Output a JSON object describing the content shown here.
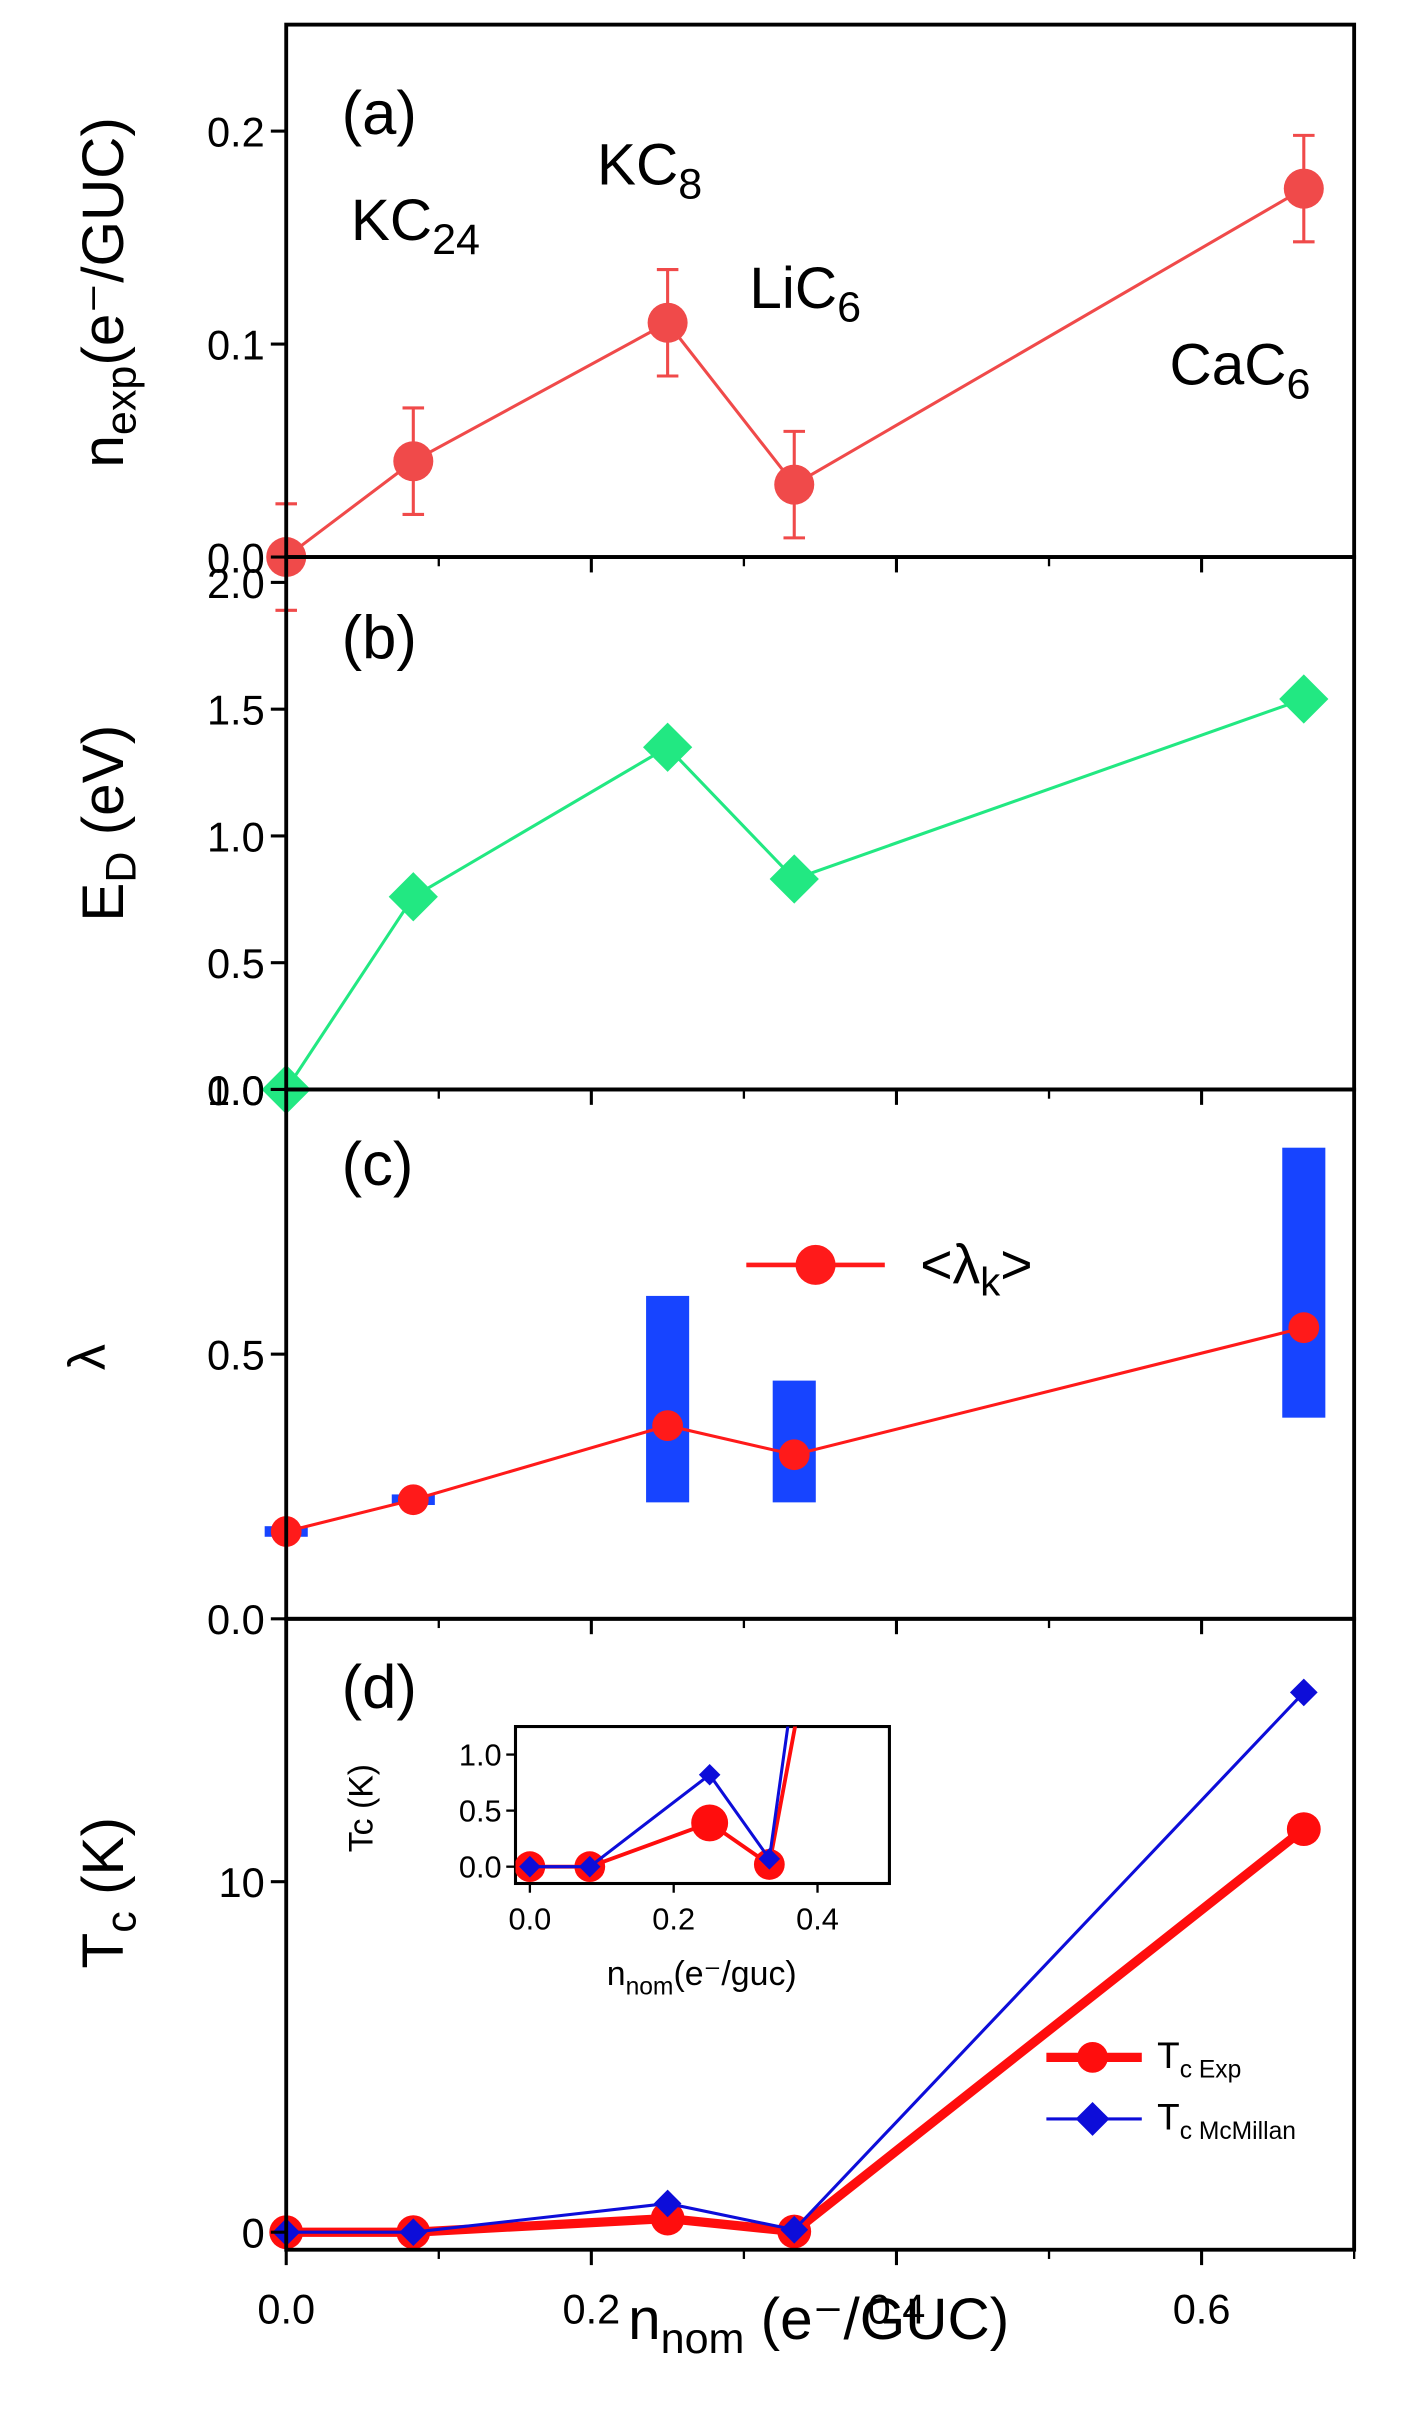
{
  "figure": {
    "x_axis_label": "n",
    "x_axis_label_sub": "nom",
    "x_axis_label_rest": " (e⁻/GUC)"
  },
  "chart_data": [
    {
      "id": "a",
      "type": "scatter",
      "panel_label": "(a)",
      "ylabel": "n",
      "ylabel_sub": "exp",
      "ylabel_rest": "(e⁻/GUC)",
      "xlim": [
        0,
        0.7
      ],
      "ylim": [
        0,
        0.25
      ],
      "yticks": [
        0.0,
        0.1,
        0.2
      ],
      "ytick_labels": [
        "0.0",
        "0.1",
        "0.2"
      ],
      "series": [
        {
          "name": "n_exp",
          "color": "#f04a4a",
          "marker": "circle",
          "x": [
            0.0,
            0.0833,
            0.25,
            0.333,
            0.667
          ],
          "y": [
            0.0,
            0.045,
            0.11,
            0.034,
            0.173
          ],
          "err": [
            0.025,
            0.025,
            0.025,
            0.025,
            0.025
          ]
        }
      ],
      "annotations": [
        {
          "base": "KC",
          "sub": "24"
        },
        {
          "base": "KC",
          "sub": "8"
        },
        {
          "base": "LiC",
          "sub": "6"
        },
        {
          "base": "CaC",
          "sub": "6"
        }
      ]
    },
    {
      "id": "b",
      "type": "scatter",
      "panel_label": "(b)",
      "ylabel": "E",
      "ylabel_sub": "D",
      "ylabel_rest": " (eV)",
      "xlim": [
        0,
        0.7
      ],
      "ylim": [
        0,
        2.1
      ],
      "yticks": [
        0.0,
        0.5,
        1.0,
        1.5,
        2.0
      ],
      "ytick_labels": [
        "0.0",
        "0.5",
        "1.0",
        "1.5",
        "2.0"
      ],
      "series": [
        {
          "name": "E_D",
          "color": "#22e882",
          "marker": "diamond",
          "x": [
            0.0,
            0.0833,
            0.25,
            0.333,
            0.667
          ],
          "y": [
            0.0,
            0.76,
            1.35,
            0.83,
            1.54
          ]
        }
      ]
    },
    {
      "id": "c",
      "type": "scatter",
      "panel_label": "(c)",
      "ylabel": "λ",
      "xlim": [
        0,
        0.7
      ],
      "ylim": [
        0,
        1.0
      ],
      "yticks": [
        0.0,
        0.5,
        1.0
      ],
      "ytick_labels": [
        "0.0",
        "0.5",
        "1.0"
      ],
      "series": [
        {
          "name": "<λk>",
          "color": "#ff1a1a",
          "marker": "circle",
          "x": [
            0.0,
            0.0833,
            0.25,
            0.333,
            0.667
          ],
          "y": [
            0.165,
            0.225,
            0.365,
            0.31,
            0.55
          ]
        }
      ],
      "ranges": {
        "color": "#1744ff",
        "x": [
          0.0,
          0.0833,
          0.25,
          0.333,
          0.667
        ],
        "low": [
          0.155,
          0.215,
          0.22,
          0.22,
          0.38
        ],
        "high": [
          0.175,
          0.235,
          0.61,
          0.45,
          0.89
        ]
      },
      "legend": {
        "label": "<λ",
        "label_sub": "k",
        "label_end": ">"
      }
    },
    {
      "id": "d",
      "type": "line",
      "panel_label": "(d)",
      "ylabel": "T",
      "ylabel_sub": "c",
      "ylabel_rest": " (K)",
      "xlim": [
        0,
        0.7
      ],
      "ylim": [
        -0.5,
        17.5
      ],
      "yticks": [
        0,
        10
      ],
      "ytick_labels": [
        "0",
        "10"
      ],
      "xticks": [
        0.0,
        0.2,
        0.4,
        0.6
      ],
      "xtick_labels": [
        "0.0",
        "0.2",
        "0.4",
        "0.6"
      ],
      "series": [
        {
          "name": "Tc Exp",
          "label": "T",
          "label_sub": "c Exp",
          "color": "#ff0d0d",
          "marker": "circle",
          "x": [
            0.0,
            0.0833,
            0.25,
            0.333,
            0.667
          ],
          "y": [
            0.0,
            0.0,
            0.39,
            0.02,
            11.5
          ]
        },
        {
          "name": "Tc McMillan",
          "label": "T",
          "label_sub": "c McMillan",
          "color": "#0d0dd9",
          "marker": "diamond",
          "x": [
            0.0,
            0.0833,
            0.25,
            0.333,
            0.667
          ],
          "y": [
            0.0,
            0.0,
            0.82,
            0.07,
            15.4
          ]
        }
      ],
      "inset": {
        "ylabel": "Tc (K)",
        "xlabel": "n",
        "xlabel_sub": "nom",
        "xlabel_rest": "(e⁻/guc)",
        "xlim": [
          -0.02,
          0.5
        ],
        "ylim": [
          -0.15,
          1.25
        ],
        "xticks": [
          0.0,
          0.2,
          0.4
        ],
        "xtick_labels": [
          "0.0",
          "0.2",
          "0.4"
        ],
        "yticks": [
          0.0,
          0.5,
          1.0
        ],
        "ytick_labels": [
          "0.0",
          "0.5",
          "1.0"
        ]
      }
    }
  ]
}
